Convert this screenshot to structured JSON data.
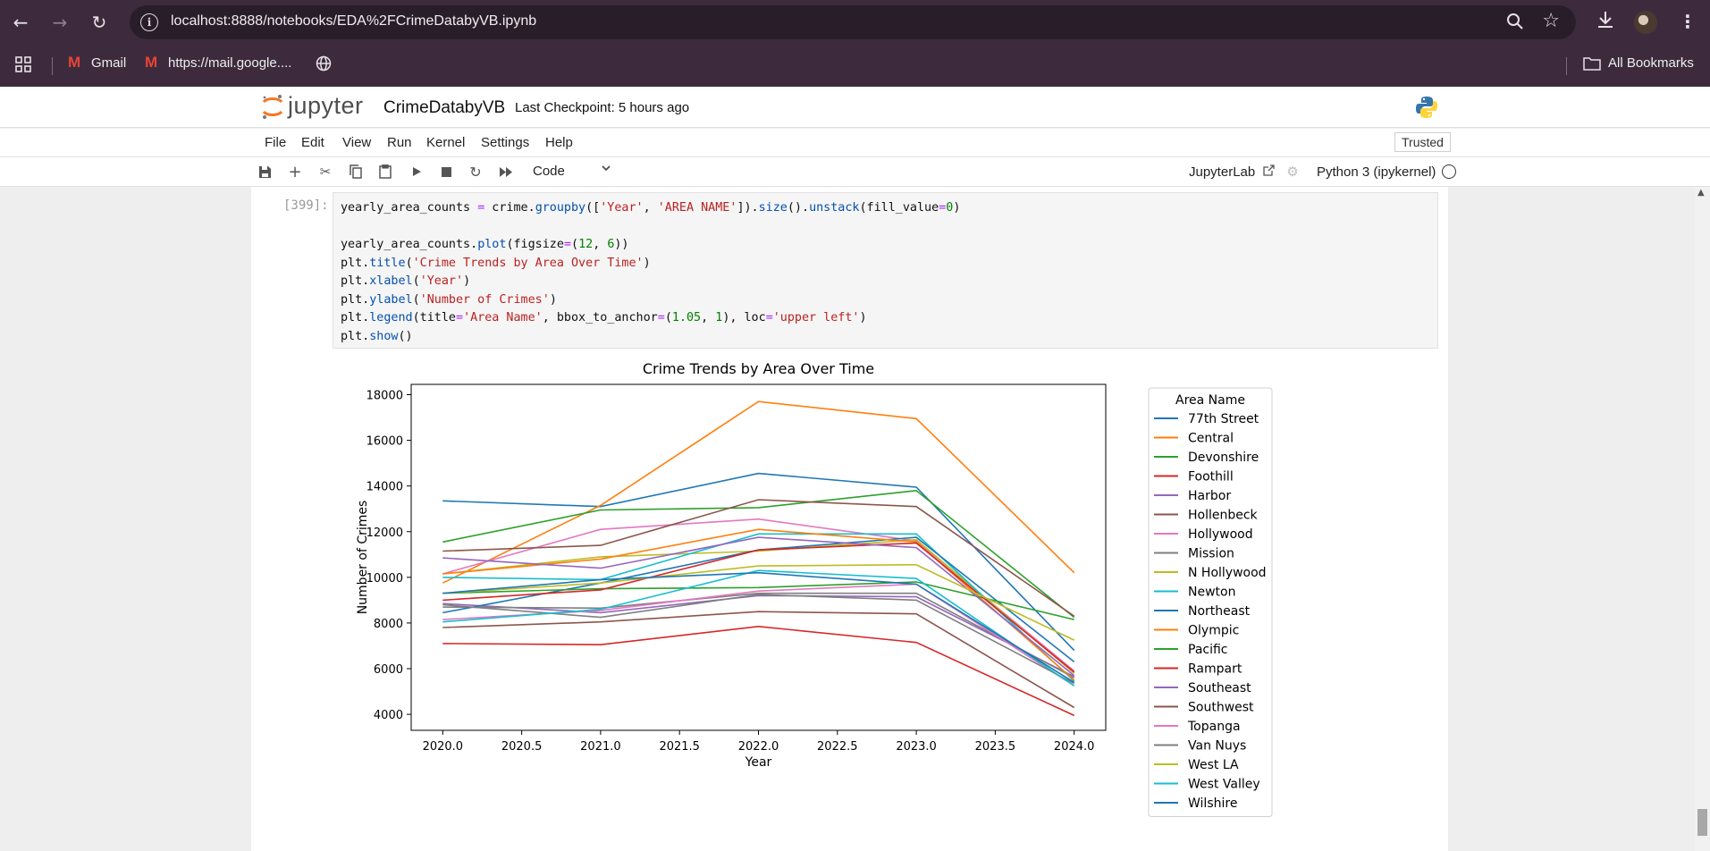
{
  "browser": {
    "url": "localhost:8888/notebooks/EDA%2FCrimeDatabyVB.ipynb",
    "bookmarks": [
      {
        "label": "Gmail"
      },
      {
        "label": "https://mail.google...."
      }
    ],
    "all_bookmarks": "All Bookmarks"
  },
  "jupyter": {
    "logo_text": "jupyter",
    "notebook_name": "CrimeDatabyVB",
    "checkpoint": "Last Checkpoint: 5 hours ago",
    "menu": [
      "File",
      "Edit",
      "View",
      "Run",
      "Kernel",
      "Settings",
      "Help"
    ],
    "trusted": "Trusted",
    "cell_type": "Code",
    "jupyterlab": "JupyterLab",
    "kernel": "Python 3 (ipykernel)"
  },
  "cell": {
    "prompt": "[399]:",
    "code": [
      "yearly_area_counts = crime.groupby(['Year', 'AREA NAME']).size().unstack(fill_value=0)",
      "",
      "yearly_area_counts.plot(figsize=(12, 6))",
      "plt.title('Crime Trends by Area Over Time')",
      "plt.xlabel('Year')",
      "plt.ylabel('Number of Crimes')",
      "plt.legend(title='Area Name', bbox_to_anchor=(1.05, 1), loc='upper left')",
      "plt.show()"
    ]
  },
  "chart_data": {
    "type": "line",
    "title": "Crime Trends by Area Over Time",
    "xlabel": "Year",
    "ylabel": "Number of Crimes",
    "x": [
      2020,
      2021,
      2022,
      2023,
      2024
    ],
    "xticks": [
      "2020.0",
      "2020.5",
      "2021.0",
      "2021.5",
      "2022.0",
      "2022.5",
      "2023.0",
      "2023.5",
      "2024.0"
    ],
    "yticks": [
      "4000",
      "6000",
      "8000",
      "10000",
      "12000",
      "14000",
      "16000",
      "18000"
    ],
    "xlim": [
      2019.8,
      2024.2
    ],
    "ylim": [
      3300,
      18450
    ],
    "legend_title": "Area Name",
    "legend_position": "outside-upper-right",
    "grid": false,
    "series": [
      {
        "name": "77th Street",
        "color": "#1f77b4",
        "values": [
          13350,
          13100,
          14550,
          13950,
          6800
        ]
      },
      {
        "name": "Central",
        "color": "#ff7f0e",
        "values": [
          9750,
          13150,
          17700,
          16950,
          10200
        ]
      },
      {
        "name": "Devonshire",
        "color": "#2ca02c",
        "values": [
          11550,
          12950,
          13050,
          13800,
          8250
        ]
      },
      {
        "name": "Foothill",
        "color": "#d62728",
        "values": [
          7100,
          7050,
          7850,
          7150,
          3950
        ]
      },
      {
        "name": "Harbor",
        "color": "#9467bd",
        "values": [
          8850,
          8450,
          9200,
          9150,
          5650
        ]
      },
      {
        "name": "Hollenbeck",
        "color": "#8c564b",
        "values": [
          7800,
          8050,
          8500,
          8400,
          4300
        ]
      },
      {
        "name": "Hollywood",
        "color": "#e377c2",
        "values": [
          10150,
          12100,
          12550,
          11600,
          5900
        ]
      },
      {
        "name": "Mission",
        "color": "#7f7f7f",
        "values": [
          8700,
          8650,
          9300,
          9300,
          5600
        ]
      },
      {
        "name": "N Hollywood",
        "color": "#bcbd22",
        "values": [
          10150,
          10900,
          11150,
          11650,
          5800
        ]
      },
      {
        "name": "Newton",
        "color": "#17becf",
        "values": [
          10000,
          9900,
          11900,
          11900,
          5450
        ]
      },
      {
        "name": "Northeast",
        "color": "#1f77b4",
        "values": [
          8450,
          9750,
          11200,
          11750,
          6300
        ]
      },
      {
        "name": "Olympic",
        "color": "#ff7f0e",
        "values": [
          10150,
          10800,
          12100,
          11550,
          5500
        ]
      },
      {
        "name": "Pacific",
        "color": "#2ca02c",
        "values": [
          9300,
          9500,
          9550,
          9800,
          8150
        ]
      },
      {
        "name": "Rampart",
        "color": "#d62728",
        "values": [
          9000,
          9450,
          11200,
          11500,
          5850
        ]
      },
      {
        "name": "Southeast",
        "color": "#9467bd",
        "values": [
          10850,
          10400,
          11750,
          11300,
          5700
        ]
      },
      {
        "name": "Southwest",
        "color": "#8c564b",
        "values": [
          11150,
          11400,
          13400,
          13100,
          8300
        ]
      },
      {
        "name": "Topanga",
        "color": "#e377c2",
        "values": [
          8150,
          8550,
          9400,
          9700,
          5250
        ]
      },
      {
        "name": "Van Nuys",
        "color": "#7f7f7f",
        "values": [
          8800,
          8250,
          9250,
          9000,
          5350
        ]
      },
      {
        "name": "West LA",
        "color": "#bcbd22",
        "values": [
          9300,
          9750,
          10500,
          10550,
          7250
        ]
      },
      {
        "name": "West Valley",
        "color": "#17becf",
        "values": [
          8050,
          8600,
          10300,
          9950,
          5250
        ]
      },
      {
        "name": "Wilshire",
        "color": "#1f77b4",
        "values": [
          9300,
          9900,
          10200,
          9700,
          5400
        ]
      }
    ]
  }
}
